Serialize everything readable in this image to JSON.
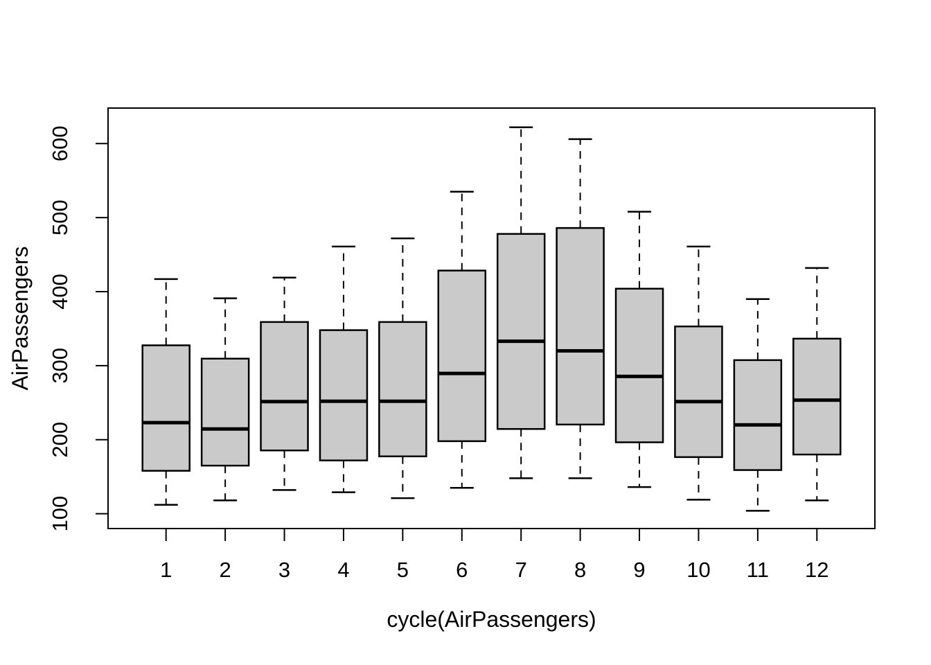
{
  "chart_data": {
    "type": "boxplot",
    "title": "",
    "xlabel": "cycle(AirPassengers)",
    "ylabel": "AirPassengers",
    "categories": [
      "1",
      "2",
      "3",
      "4",
      "5",
      "6",
      "7",
      "8",
      "9",
      "10",
      "11",
      "12"
    ],
    "y_ticks": [
      100,
      200,
      300,
      400,
      500,
      600
    ],
    "ylim": [
      80,
      648
    ],
    "xlim": [
      0.02,
      12.98
    ],
    "grid": false,
    "legend": false,
    "series": [
      {
        "category": "1",
        "whisker_low": 112,
        "q1": 158,
        "median": 223,
        "q3": 327.5,
        "whisker_high": 417,
        "outliers": []
      },
      {
        "category": "2",
        "whisker_low": 118,
        "q1": 165,
        "median": 214.5,
        "q3": 309.5,
        "whisker_high": 391,
        "outliers": []
      },
      {
        "category": "3",
        "whisker_low": 132,
        "q1": 185.5,
        "median": 251.5,
        "q3": 359,
        "whisker_high": 419,
        "outliers": []
      },
      {
        "category": "4",
        "whisker_low": 129,
        "q1": 172,
        "median": 252,
        "q3": 348,
        "whisker_high": 461,
        "outliers": []
      },
      {
        "category": "5",
        "whisker_low": 121,
        "q1": 177.5,
        "median": 252,
        "q3": 359,
        "whisker_high": 472,
        "outliers": []
      },
      {
        "category": "6",
        "whisker_low": 135,
        "q1": 198,
        "median": 289.5,
        "q3": 428.5,
        "whisker_high": 535,
        "outliers": []
      },
      {
        "category": "7",
        "whisker_low": 148,
        "q1": 214.5,
        "median": 333,
        "q3": 478,
        "whisker_high": 622,
        "outliers": []
      },
      {
        "category": "8",
        "whisker_low": 148,
        "q1": 220.5,
        "median": 320,
        "q3": 486,
        "whisker_high": 606,
        "outliers": []
      },
      {
        "category": "9",
        "whisker_low": 136,
        "q1": 196.5,
        "median": 285.5,
        "q3": 404,
        "whisker_high": 508,
        "outliers": []
      },
      {
        "category": "10",
        "whisker_low": 119,
        "q1": 176.5,
        "median": 251.5,
        "q3": 353,
        "whisker_high": 461,
        "outliers": []
      },
      {
        "category": "11",
        "whisker_low": 104,
        "q1": 159,
        "median": 220,
        "q3": 307.5,
        "whisker_high": 390,
        "outliers": []
      },
      {
        "category": "12",
        "whisker_low": 118,
        "q1": 180,
        "median": 253.5,
        "q3": 336.5,
        "whisker_high": 432,
        "outliers": []
      }
    ],
    "colors": {
      "box_fill": "#CACACA",
      "box_border": "#000000",
      "median": "#000000",
      "whisker": "#000000",
      "axis": "#000000",
      "background": "#FFFFFF"
    }
  }
}
